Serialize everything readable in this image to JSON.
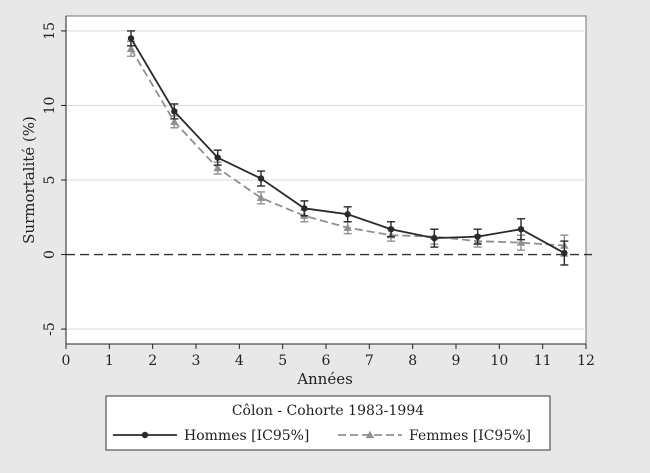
{
  "chart_data": {
    "type": "line",
    "xlabel": "Années",
    "ylabel": "Surmortalité (%)",
    "xlim": [
      0,
      12
    ],
    "ylim": [
      -6,
      16
    ],
    "x_ticks": [
      0,
      1,
      2,
      3,
      4,
      5,
      6,
      7,
      8,
      9,
      10,
      11,
      12
    ],
    "y_ticks": [
      -5,
      0,
      5,
      10,
      15
    ],
    "x_tick_labels": [
      "0",
      "1",
      "2",
      "3",
      "4",
      "5",
      "6",
      "7",
      "8",
      "9",
      "10",
      "11",
      "12"
    ],
    "y_tick_labels": [
      "-5",
      "0",
      "5",
      "10",
      "15"
    ],
    "grid": "horizontal",
    "reference_line": 0,
    "legend": {
      "title": "Côlon - Cohorte 1983-1994",
      "placement": "bottom"
    },
    "series": [
      {
        "name": "Hommes [IC95%]",
        "color": "#2a2a2a",
        "style": "solid",
        "marker": "circle",
        "x": [
          1.5,
          2.5,
          3.5,
          4.5,
          5.5,
          6.5,
          7.5,
          8.5,
          9.5,
          10.5,
          11.5
        ],
        "y": [
          14.5,
          9.6,
          6.5,
          5.1,
          3.1,
          2.7,
          1.7,
          1.1,
          1.2,
          1.7,
          0.1
        ],
        "ci_low": [
          14.0,
          9.1,
          6.0,
          4.6,
          2.6,
          2.2,
          1.2,
          0.5,
          0.7,
          1.0,
          -0.7
        ],
        "ci_high": [
          15.0,
          10.1,
          7.0,
          5.6,
          3.6,
          3.2,
          2.2,
          1.7,
          1.7,
          2.4,
          0.9
        ]
      },
      {
        "name": "Femmes [IC95%]",
        "color": "#909090",
        "style": "dashed",
        "marker": "triangle",
        "x": [
          1.5,
          2.5,
          3.5,
          4.5,
          5.5,
          6.5,
          7.5,
          8.5,
          9.5,
          10.5,
          11.5
        ],
        "y": [
          13.8,
          8.9,
          5.8,
          3.8,
          2.6,
          1.8,
          1.3,
          1.2,
          0.9,
          0.8,
          0.6
        ],
        "ci_low": [
          13.3,
          8.5,
          5.4,
          3.4,
          2.2,
          1.4,
          0.9,
          0.7,
          0.5,
          0.3,
          -0.1
        ],
        "ci_high": [
          14.3,
          9.3,
          6.2,
          4.2,
          3.0,
          2.2,
          1.7,
          1.7,
          1.3,
          1.3,
          1.3
        ]
      }
    ]
  }
}
